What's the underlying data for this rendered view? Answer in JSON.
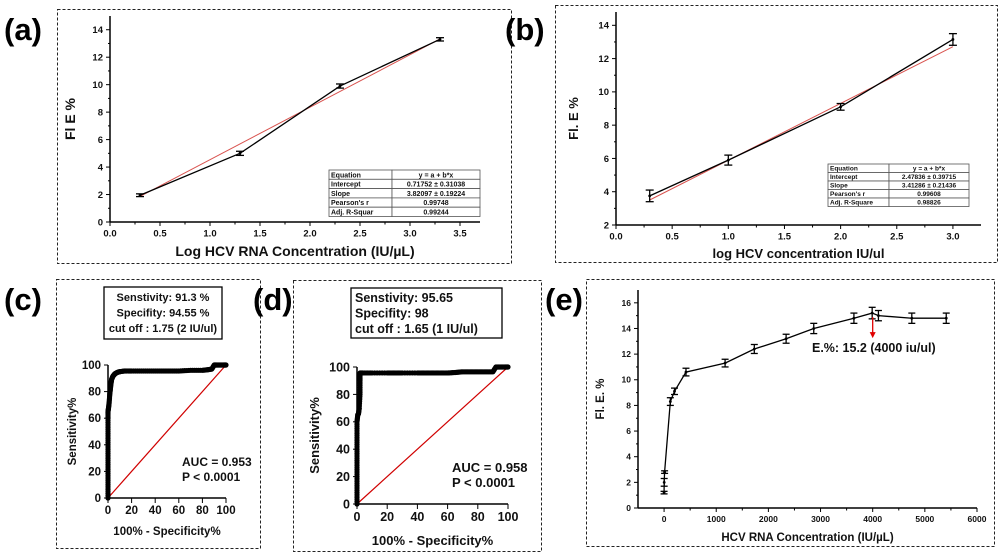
{
  "panels": {
    "a": {
      "label": "(a)"
    },
    "b": {
      "label": "(b)"
    },
    "c": {
      "label": "(c)"
    },
    "d": {
      "label": "(d)"
    },
    "e": {
      "label": "(e)"
    }
  },
  "chart_data": [
    {
      "id": "a",
      "type": "line",
      "title": "",
      "xlabel": "Log HCV RNA Concentration (IU/µL)",
      "ylabel": "Fl E %",
      "xlim": [
        0.0,
        3.7
      ],
      "ylim": [
        0,
        15
      ],
      "xticks": [
        0.0,
        0.5,
        1.0,
        1.5,
        2.0,
        2.5,
        3.0,
        3.5
      ],
      "xtick_labels": [
        "0.0",
        "0.5",
        "1.0",
        "1.5",
        "2.0",
        "2.5",
        "3.0",
        "3.5"
      ],
      "yticks": [
        0,
        2,
        4,
        6,
        8,
        10,
        12,
        14
      ],
      "ytick_labels": [
        "0",
        "2",
        "4",
        "6",
        "8",
        "10",
        "12",
        "14"
      ],
      "series": [
        {
          "name": "data",
          "x": [
            0.3,
            1.3,
            2.3,
            3.3
          ],
          "y": [
            1.95,
            5.0,
            9.9,
            13.3
          ],
          "err": [
            0.1,
            0.15,
            0.15,
            0.12
          ]
        }
      ],
      "fit": {
        "intercept": 0.71752,
        "slope": 3.82097,
        "x_range": [
          0.3,
          3.3
        ]
      },
      "fit_table": {
        "rows": [
          [
            "Equation",
            "y = a + b*x"
          ],
          [
            "Intercept",
            "0.71752 ± 0.31038"
          ],
          [
            "Slope",
            "3.82097 ± 0.19224"
          ],
          [
            "Pearson's r",
            "0.99748"
          ],
          [
            "Adj. R-Squar",
            "0.99244"
          ]
        ]
      },
      "grid": false
    },
    {
      "id": "b",
      "type": "line",
      "title": "",
      "xlabel": "log HCV concentration IU/ul",
      "ylabel": "Fl. E %",
      "xlim": [
        0.0,
        3.25
      ],
      "ylim": [
        2,
        14.8
      ],
      "xticks": [
        0.0,
        0.5,
        1.0,
        1.5,
        2.0,
        2.5,
        3.0
      ],
      "xtick_labels": [
        "0.0",
        "0.5",
        "1.0",
        "1.5",
        "2.0",
        "2.5",
        "3.0"
      ],
      "yticks": [
        2,
        4,
        6,
        8,
        10,
        12,
        14
      ],
      "ytick_labels": [
        "2",
        "4",
        "6",
        "8",
        "10",
        "12",
        "14"
      ],
      "series": [
        {
          "name": "data",
          "x": [
            0.3,
            1.0,
            2.0,
            3.0
          ],
          "y": [
            3.75,
            5.9,
            9.1,
            13.15
          ],
          "err": [
            0.35,
            0.3,
            0.2,
            0.35
          ]
        }
      ],
      "fit": {
        "intercept": 2.47836,
        "slope": 3.41286,
        "x_range": [
          0.3,
          3.0
        ]
      },
      "fit_table": {
        "rows": [
          [
            "Equation",
            "y = a + b*x"
          ],
          [
            "Intercept",
            "2.47836 ± 0.39715"
          ],
          [
            "Slope",
            "3.41286 ± 0.21436"
          ],
          [
            "Pearson's r",
            "0.99608"
          ],
          [
            "Adj. R-Square",
            "0.98826"
          ]
        ]
      },
      "grid": false
    },
    {
      "id": "c",
      "type": "line",
      "subtype": "roc",
      "title": "",
      "xlabel": "100% - Specificity%",
      "ylabel": "Sensitivity%",
      "xlim": [
        0,
        100
      ],
      "ylim": [
        0,
        100
      ],
      "xticks": [
        0,
        20,
        40,
        60,
        80,
        100
      ],
      "xtick_labels": [
        "0",
        "20",
        "40",
        "60",
        "80",
        "100"
      ],
      "yticks": [
        0,
        20,
        40,
        60,
        80,
        100
      ],
      "ytick_labels": [
        "0",
        "20",
        "40",
        "60",
        "80",
        "100"
      ],
      "roc_curve": {
        "x": [
          0,
          0,
          0,
          0,
          0,
          0,
          0,
          0,
          0.5,
          1,
          1.5,
          2,
          2.5,
          3,
          4,
          5,
          6,
          8,
          10,
          14,
          20,
          30,
          40,
          50,
          60,
          70,
          80,
          85,
          88,
          90,
          92,
          95,
          98,
          100
        ],
        "y": [
          0,
          10,
          20,
          30,
          40,
          50,
          60,
          65,
          68,
          72,
          78,
          82,
          86,
          89,
          91.3,
          92.5,
          93.5,
          94.5,
          95,
          95.5,
          95.5,
          95.5,
          95.5,
          95.5,
          95.5,
          96,
          96,
          96.5,
          97,
          100,
          100,
          100,
          100,
          100
        ]
      },
      "reference_line": {
        "x": [
          0,
          100
        ],
        "y": [
          0,
          100
        ]
      },
      "stats_box": [
        "Senstivity: 91.3 %",
        "Specifity: 94.55 %",
        "cut off : 1.75 (2 IU/ul)"
      ],
      "annotations": [
        "AUC = 0.953",
        "P <  0.0001"
      ],
      "grid": false
    },
    {
      "id": "d",
      "type": "line",
      "subtype": "roc",
      "title": "",
      "xlabel": "100% - Specificity%",
      "ylabel": "Sensitivity%",
      "xlim": [
        0,
        100
      ],
      "ylim": [
        0,
        100
      ],
      "xticks": [
        0,
        20,
        40,
        60,
        80,
        100
      ],
      "xtick_labels": [
        "0",
        "20",
        "40",
        "60",
        "80",
        "100"
      ],
      "yticks": [
        0,
        20,
        40,
        60,
        80,
        100
      ],
      "ytick_labels": [
        "0",
        "20",
        "40",
        "60",
        "80",
        "100"
      ],
      "roc_curve": {
        "x": [
          0,
          0,
          0,
          0,
          0,
          0,
          0,
          0.5,
          1,
          1.5,
          2,
          2,
          2,
          4,
          10,
          20,
          25,
          30,
          40,
          45,
          50,
          55,
          60,
          65,
          70,
          75,
          80,
          85,
          90,
          92,
          95,
          98,
          100
        ],
        "y": [
          0,
          10,
          20,
          30,
          40,
          50,
          60,
          65,
          66,
          70,
          80,
          90,
          95.65,
          95.65,
          95.65,
          95.65,
          95.65,
          95.65,
          95.65,
          95.65,
          95.65,
          95.65,
          95.65,
          96,
          96.5,
          96.5,
          96.5,
          96.5,
          96.5,
          100,
          100,
          100,
          100
        ]
      },
      "reference_line": {
        "x": [
          0,
          100
        ],
        "y": [
          0,
          100
        ]
      },
      "stats_box": [
        "Senstivity: 95.65",
        "Specifity: 98",
        "cut off : 1.65 (1 IU/ul)"
      ],
      "annotations": [
        "AUC = 0.958",
        "P <  0.0001"
      ],
      "grid": false
    },
    {
      "id": "e",
      "type": "line",
      "title": "",
      "xlabel": "HCV RNA Concentration (IU/µL)",
      "ylabel": "Fl. E. %",
      "xlim": [
        -500,
        6000
      ],
      "ylim": [
        0,
        17
      ],
      "xticks": [
        0,
        1000,
        2000,
        3000,
        4000,
        5000,
        6000
      ],
      "xtick_labels": [
        "0",
        "1000",
        "2000",
        "3000",
        "4000",
        "5000",
        "6000"
      ],
      "yticks": [
        0,
        2,
        4,
        6,
        8,
        10,
        12,
        14,
        16
      ],
      "ytick_labels": [
        "0",
        "2",
        "4",
        "6",
        "8",
        "10",
        "12",
        "14",
        "16"
      ],
      "series": [
        {
          "name": "data",
          "x": [
            0,
            2,
            10,
            120,
            200,
            420,
            1170,
            1730,
            2340,
            2870,
            3640,
            3990,
            4110,
            4750,
            5410
          ],
          "y": [
            1.2,
            2.0,
            2.8,
            8.3,
            9.1,
            10.6,
            11.3,
            12.4,
            13.2,
            14.0,
            14.8,
            15.2,
            15.0,
            14.8,
            14.8
          ],
          "err": [
            0.1,
            0.3,
            0.1,
            0.3,
            0.25,
            0.3,
            0.3,
            0.35,
            0.35,
            0.4,
            0.4,
            0.45,
            0.4,
            0.4,
            0.4
          ]
        }
      ],
      "annotation": {
        "text": "E.%: 15.2 (4000 iu/ul)",
        "x": 4000,
        "y": 15.2
      },
      "grid": false
    }
  ]
}
